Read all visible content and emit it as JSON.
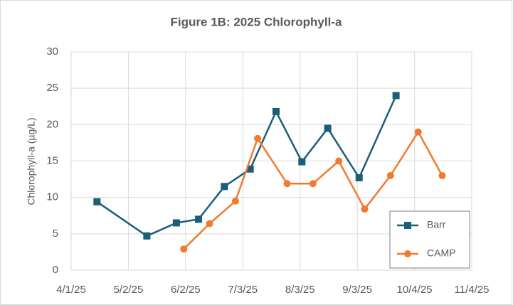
{
  "chart_data": {
    "type": "line",
    "title": "Figure 1B: 2025 Chlorophyll-a",
    "y_label": "Chlorophyll-a (µg/L)",
    "xlim": [
      "2025-04-01",
      "2025-11-04"
    ],
    "xticks": [
      {
        "value": "2025-04-01",
        "label": "4/1/25"
      },
      {
        "value": "2025-05-02",
        "label": "5/2/25"
      },
      {
        "value": "2025-06-02",
        "label": "6/2/25"
      },
      {
        "value": "2025-07-03",
        "label": "7/3/25"
      },
      {
        "value": "2025-08-03",
        "label": "8/3/25"
      },
      {
        "value": "2025-09-03",
        "label": "9/3/25"
      },
      {
        "value": "2025-10-04",
        "label": "10/4/25"
      },
      {
        "value": "2025-11-04",
        "label": "11/4/25"
      }
    ],
    "ylim": [
      0,
      30
    ],
    "yticks": [
      0,
      5,
      10,
      15,
      20,
      25,
      30
    ],
    "grid": true,
    "legend": "lower right",
    "series": [
      {
        "name": "Barr",
        "color": "#1b5e78",
        "marker": "square",
        "x": [
          "2025-04-15",
          "2025-05-12",
          "2025-05-28",
          "2025-06-09",
          "2025-06-23",
          "2025-07-07",
          "2025-07-21",
          "2025-08-04",
          "2025-08-18",
          "2025-09-04",
          "2025-09-24"
        ],
        "values": [
          9.4,
          4.7,
          6.5,
          7.0,
          11.5,
          13.9,
          21.8,
          14.9,
          19.5,
          12.7,
          24.0
        ]
      },
      {
        "name": "CAMP",
        "color": "#f07b2f",
        "marker": "circle",
        "x": [
          "2025-06-01",
          "2025-06-15",
          "2025-06-29",
          "2025-07-11",
          "2025-07-27",
          "2025-08-10",
          "2025-08-24",
          "2025-09-07",
          "2025-09-21",
          "2025-10-06",
          "2025-10-19"
        ],
        "values": [
          2.9,
          6.4,
          9.5,
          18.1,
          11.9,
          11.9,
          15.0,
          8.4,
          13.0,
          19.0,
          13.0
        ]
      }
    ]
  }
}
